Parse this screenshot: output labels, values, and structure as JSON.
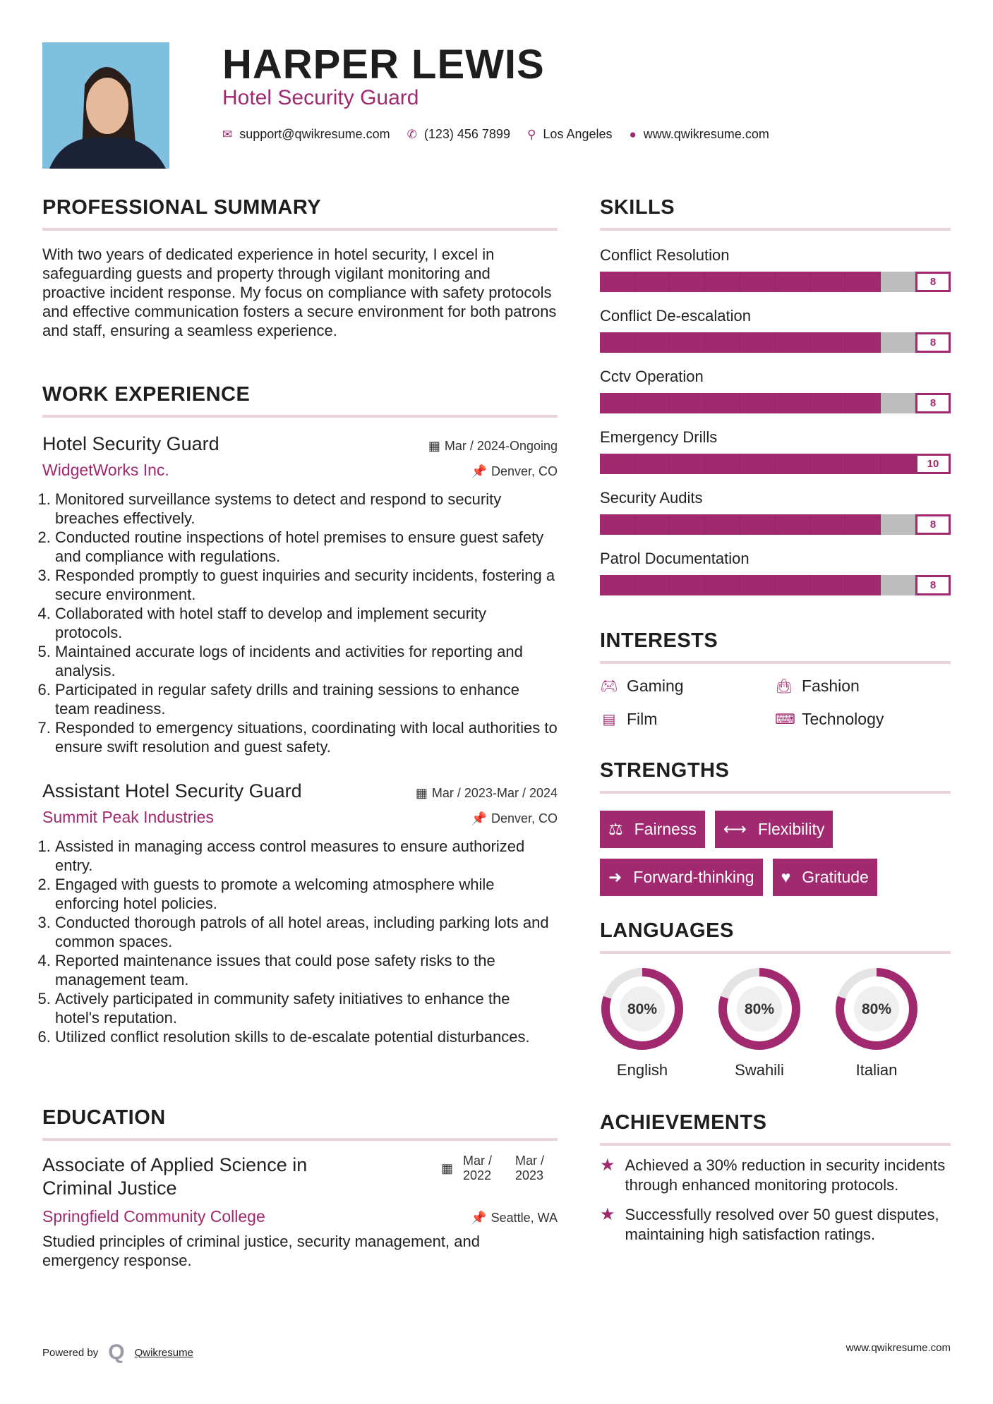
{
  "header": {
    "name": "HARPER LEWIS",
    "title": "Hotel Security Guard",
    "contacts": [
      {
        "icon": "envelope-icon",
        "text": "support@qwikresume.com"
      },
      {
        "icon": "phone-icon",
        "text": "(123) 456 7899"
      },
      {
        "icon": "map-marker-icon",
        "text": "Los Angeles"
      },
      {
        "icon": "globe-icon",
        "text": "www.qwikresume.com"
      }
    ]
  },
  "summary": {
    "heading": "PROFESSIONAL SUMMARY",
    "text": "With two years of dedicated experience in hotel security, I excel in safeguarding guests and property through vigilant monitoring and proactive incident response. My focus on compliance with safety protocols and effective communication fosters a secure environment for both patrons and staff, ensuring a seamless experience."
  },
  "experience": {
    "heading": "WORK EXPERIENCE",
    "jobs": [
      {
        "title": "Hotel Security Guard",
        "date": "Mar / 2024-Ongoing",
        "company": "WidgetWorks Inc.",
        "location": "Denver, CO",
        "items": [
          "Monitored surveillance systems to detect and respond to security breaches effectively.",
          "Conducted routine inspections of hotel premises to ensure guest safety and compliance with regulations.",
          "Responded promptly to guest inquiries and security incidents, fostering a secure environment.",
          "Collaborated with hotel staff to develop and implement security protocols.",
          "Maintained accurate logs of incidents and activities for reporting and analysis.",
          "Participated in regular safety drills and training sessions to enhance team readiness.",
          "Responded to emergency situations, coordinating with local authorities to ensure swift resolution and guest safety."
        ]
      },
      {
        "title": "Assistant Hotel Security Guard",
        "date": "Mar / 2023-Mar / 2024",
        "company": "Summit Peak Industries",
        "location": "Denver, CO",
        "items": [
          "Assisted in managing access control measures to ensure authorized entry.",
          "Engaged with guests to promote a welcoming atmosphere while enforcing hotel policies.",
          "Conducted thorough patrols of all hotel areas, including parking lots and common spaces.",
          "Reported maintenance issues that could pose safety risks to the management team.",
          "Actively participated in community safety initiatives to enhance the hotel's reputation.",
          "Utilized conflict resolution skills to de-escalate potential disturbances."
        ]
      }
    ]
  },
  "education": {
    "heading": "EDUCATION",
    "degree": "Associate of Applied Science in Criminal Justice",
    "start": "Mar / 2022",
    "end": "Mar / 2023",
    "school": "Springfield Community College",
    "location": "Seattle, WA",
    "text": "Studied principles of criminal justice, security management, and emergency response."
  },
  "skills": {
    "heading": "SKILLS",
    "max": 10,
    "items": [
      {
        "label": "Conflict Resolution",
        "value": 8
      },
      {
        "label": "Conflict De-escalation",
        "value": 8
      },
      {
        "label": "Cctv Operation",
        "value": 8
      },
      {
        "label": "Emergency Drills",
        "value": 10
      },
      {
        "label": "Security Audits",
        "value": 8
      },
      {
        "label": "Patrol Documentation",
        "value": 8
      }
    ]
  },
  "interests": {
    "heading": "INTERESTS",
    "items": [
      {
        "icon": "gamepad-icon",
        "label": "Gaming"
      },
      {
        "icon": "shopping-bag-icon",
        "label": "Fashion"
      },
      {
        "icon": "film-icon",
        "label": "Film"
      },
      {
        "icon": "laptop-icon",
        "label": "Technology"
      }
    ]
  },
  "strengths": {
    "heading": "STRENGTHS",
    "items": [
      {
        "icon": "balance-scale-icon",
        "label": "Fairness"
      },
      {
        "icon": "arrows-horizontal-icon",
        "label": "Flexibility"
      },
      {
        "icon": "arrow-right-icon",
        "label": "Forward-thinking"
      },
      {
        "icon": "heart-icon",
        "label": "Gratitude"
      }
    ]
  },
  "languages": {
    "heading": "LANGUAGES",
    "items": [
      {
        "name": "English",
        "percent": 80,
        "label": "80%"
      },
      {
        "name": "Swahili",
        "percent": 80,
        "label": "80%"
      },
      {
        "name": "Italian",
        "percent": 80,
        "label": "80%"
      }
    ]
  },
  "achievements": {
    "heading": "ACHIEVEMENTS",
    "items": [
      "Achieved a 30% reduction in security incidents through enhanced monitoring protocols.",
      "Successfully resolved over 50 guest disputes, maintaining high satisfaction ratings."
    ]
  },
  "footer": {
    "powered_by": "Powered by",
    "brand": "Qwikresume",
    "website": "www.qwikresume.com"
  },
  "colors": {
    "accent": "#a0296f",
    "track": "#bdbdbd",
    "rule": "#ead3dd"
  }
}
